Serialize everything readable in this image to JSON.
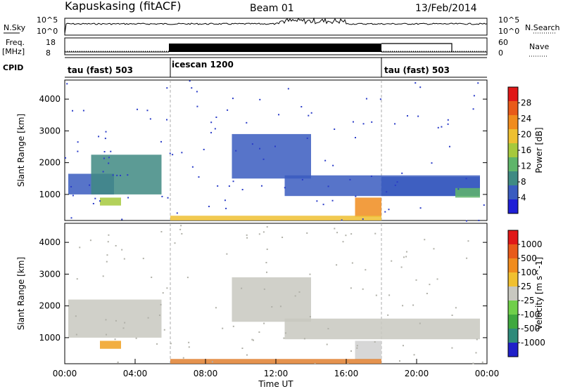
{
  "header": {
    "station": "Kapuskasing (fitACF)",
    "beam": "Beam 01",
    "date": "13/Feb/2014"
  },
  "strips": {
    "nsky_label": "N.Sky",
    "nsky_ticks": [
      "10^5",
      "10^0"
    ],
    "nsearch_label": "N.Search",
    "nsearch_ticks": [
      "10^5",
      "10^0"
    ],
    "freq_label_line1": "Freq.",
    "freq_label_line2": "[MHz]",
    "freq_ticks": [
      "18",
      "8"
    ],
    "nave_label": "Nave",
    "nave_ticks": [
      "60",
      "0"
    ],
    "cpid_label": "CPID",
    "cpid_segments": [
      {
        "label": "tau (fast) 503",
        "start_hour": 0,
        "end_hour": 6
      },
      {
        "label": "icescan 1200",
        "start_hour": 6,
        "end_hour": 18
      },
      {
        "label": "tau (fast) 503",
        "start_hour": 18,
        "end_hour": 24
      }
    ]
  },
  "chart_data": [
    {
      "type": "heatmap",
      "title": "",
      "xlabel": "",
      "ylabel": "Slant Range [km]",
      "xlim": [
        0,
        24
      ],
      "ylim": [
        180,
        4600
      ],
      "yticks": [
        1000,
        2000,
        3000,
        4000
      ],
      "colorbar": {
        "label": "Power [dB]",
        "ticks": [
          "4",
          "8",
          "12",
          "16",
          "20",
          "24",
          "28"
        ],
        "colors": [
          "#1f1fd6",
          "#3a5cc0",
          "#3f8a83",
          "#5fb56a",
          "#a6c93d",
          "#eec032",
          "#f08c1e",
          "#e85a1a",
          "#e01818"
        ]
      },
      "regions": [
        {
          "x0": 0.2,
          "x1": 2.8,
          "y0": 1000,
          "y1": 1650,
          "level": 1
        },
        {
          "x0": 1.5,
          "x1": 5.5,
          "y0": 1000,
          "y1": 2250,
          "level": 2
        },
        {
          "x0": 2.0,
          "x1": 3.2,
          "y0": 650,
          "y1": 900,
          "level": 4
        },
        {
          "x0": 9.5,
          "x1": 14.0,
          "y0": 1500,
          "y1": 2900,
          "level": 1
        },
        {
          "x0": 12.5,
          "x1": 23.6,
          "y0": 950,
          "y1": 1600,
          "level": 1
        },
        {
          "x0": 16.5,
          "x1": 18.0,
          "y0": 300,
          "y1": 900,
          "level": 6
        },
        {
          "x0": 18.0,
          "x1": 23.6,
          "y0": 950,
          "y1": 1550,
          "level": 1
        },
        {
          "x0": 22.2,
          "x1": 23.6,
          "y0": 900,
          "y1": 1200,
          "level": 3
        },
        {
          "x0": 6.0,
          "x1": 18.0,
          "y0": 180,
          "y1": 330,
          "level": 5
        }
      ]
    },
    {
      "type": "heatmap",
      "title": "",
      "xlabel": "Time UT",
      "ylabel": "Slant Range [km]",
      "xlim": [
        0,
        24
      ],
      "ylim": [
        180,
        4600
      ],
      "yticks": [
        1000,
        2000,
        3000,
        4000
      ],
      "xticks": [
        "00:00",
        "04:00",
        "08:00",
        "12:00",
        "16:00",
        "20:00",
        "00:00"
      ],
      "colorbar": {
        "label": "Velocity [m s^-1]",
        "ticks": [
          "1000",
          "500",
          "100",
          "25",
          "-25",
          "-100",
          "-500",
          "-1000"
        ],
        "colors": [
          "#2020c8",
          "#2e8a7a",
          "#3fa83f",
          "#70cf4a",
          "#c8c8c0",
          "#f0c030",
          "#f08c1e",
          "#e85a1a",
          "#e01818"
        ]
      },
      "regions": [
        {
          "x0": 0.2,
          "x1": 5.5,
          "y0": 1000,
          "y1": 2200,
          "color": "#c8c8c0"
        },
        {
          "x0": 2.0,
          "x1": 3.2,
          "y0": 650,
          "y1": 900,
          "color": "#f0a020"
        },
        {
          "x0": 9.5,
          "x1": 14.0,
          "y0": 1500,
          "y1": 2900,
          "color": "#c8c8c0"
        },
        {
          "x0": 12.5,
          "x1": 23.6,
          "y0": 950,
          "y1": 1600,
          "color": "#c8c8c0"
        },
        {
          "x0": 16.5,
          "x1": 18.0,
          "y0": 300,
          "y1": 900,
          "color": "#d0d0d0"
        },
        {
          "x0": 6.0,
          "x1": 18.0,
          "y0": 180,
          "y1": 330,
          "color": "#e08030"
        }
      ]
    }
  ]
}
